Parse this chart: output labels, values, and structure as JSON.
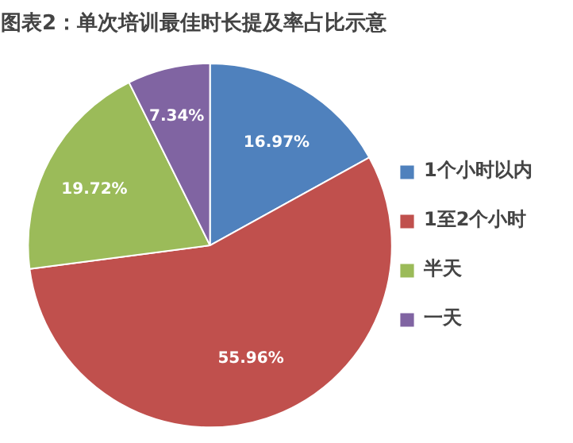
{
  "chart_data": {
    "type": "pie",
    "title": "图表2：单次培训最佳时长提及率占比示意",
    "categories": [
      "1个小时以内",
      "1至2个小时",
      "半天",
      "一天"
    ],
    "values": [
      16.97,
      55.96,
      19.72,
      7.34
    ],
    "colors": [
      "#4f81bd",
      "#c0504d",
      "#9bbb59",
      "#8064a2"
    ],
    "value_labels": [
      "16.97%",
      "55.96%",
      "19.72%",
      "7.34%"
    ],
    "legend": "right"
  }
}
